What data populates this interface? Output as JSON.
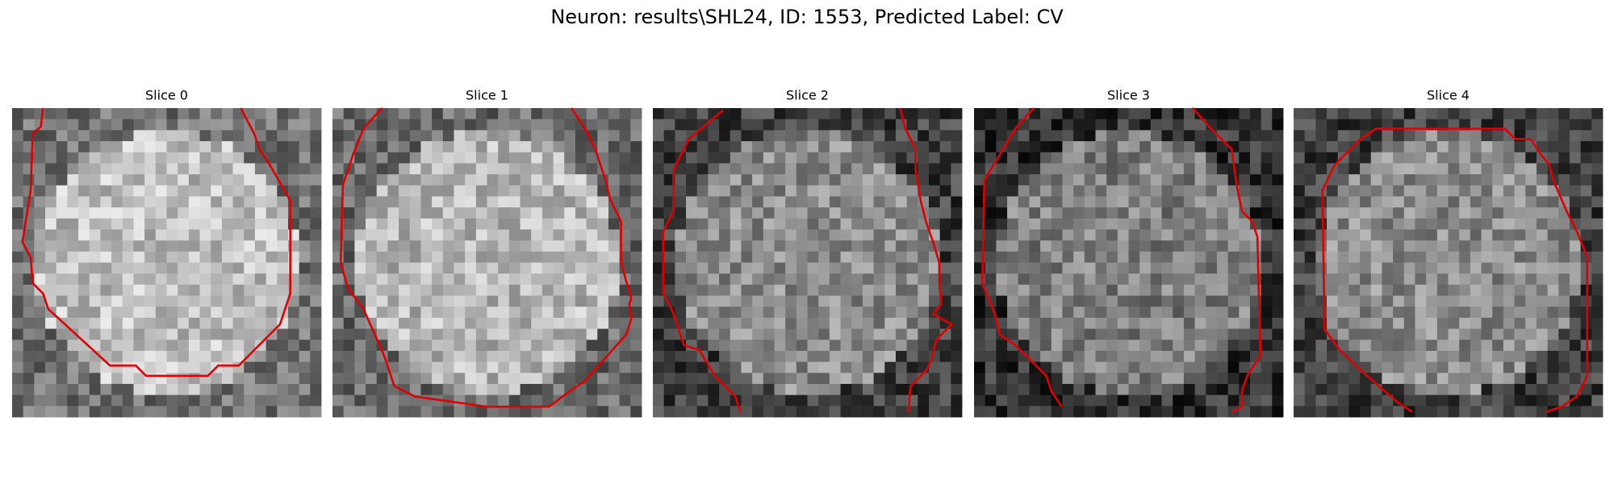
{
  "title": "Neuron: results\\SHL24, ID: 1553, Predicted Label: CV",
  "panels": [
    {
      "title": "Slice 0"
    },
    {
      "title": "Slice 1"
    },
    {
      "title": "Slice 2"
    },
    {
      "title": "Slice 3"
    },
    {
      "title": "Slice 4"
    }
  ]
}
